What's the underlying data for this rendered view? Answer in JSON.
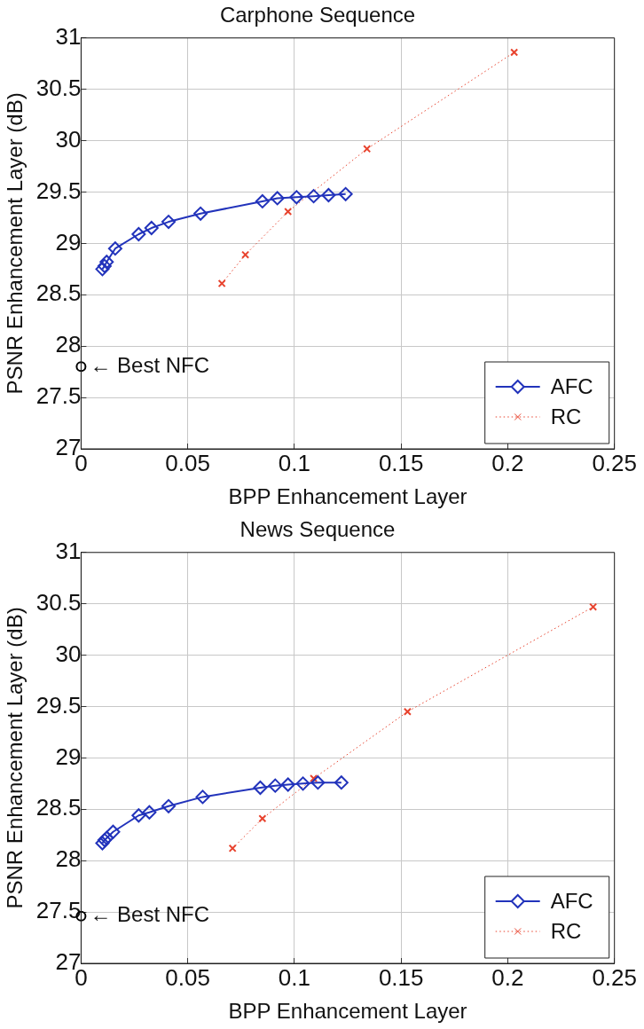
{
  "chart_data": [
    {
      "type": "line",
      "title": "Carphone Sequence",
      "xlabel": "BPP Enhancement Layer",
      "ylabel": "PSNR Enhancement Layer (dB)",
      "xlim": [
        0,
        0.25
      ],
      "xticks": [
        0,
        0.05,
        0.1,
        0.15,
        0.2,
        0.25
      ],
      "ylim": [
        27,
        31
      ],
      "yticks": [
        27,
        27.5,
        28,
        28.5,
        29,
        29.5,
        30,
        30.5,
        31
      ],
      "grid": true,
      "legend": "bottom right",
      "series": [
        {
          "name": "AFC",
          "type": "line",
          "color": "#2233bb",
          "marker": "diamond",
          "line_style": "solid",
          "x": [
            0.01,
            0.011,
            0.012,
            0.016,
            0.027,
            0.033,
            0.041,
            0.056,
            0.085,
            0.092,
            0.101,
            0.109,
            0.116,
            0.124
          ],
          "values": [
            28.75,
            28.78,
            28.82,
            28.95,
            29.09,
            29.15,
            29.21,
            29.29,
            29.41,
            29.44,
            29.45,
            29.46,
            29.47,
            29.48
          ]
        },
        {
          "name": "RC",
          "type": "line",
          "color": "#e8432e",
          "marker": "cross",
          "line_style": "dotted",
          "x": [
            0.066,
            0.077,
            0.097,
            0.134,
            0.203
          ],
          "values": [
            28.61,
            28.89,
            29.31,
            29.92,
            30.86
          ]
        },
        {
          "type": "scatter",
          "color": "#000000",
          "marker": "circle",
          "x": [
            0
          ],
          "values": [
            27.8
          ]
        }
      ],
      "annotations": [
        {
          "text": "← Best NFC",
          "x": 0,
          "y": 27.8
        }
      ]
    },
    {
      "type": "line",
      "title": "News Sequence",
      "xlabel": "BPP Enhancement Layer",
      "ylabel": "PSNR Enhancement Layer (dB)",
      "xlim": [
        0,
        0.25
      ],
      "xticks": [
        0,
        0.05,
        0.1,
        0.15,
        0.2,
        0.25
      ],
      "ylim": [
        27,
        31
      ],
      "yticks": [
        27,
        27.5,
        28,
        28.5,
        29,
        29.5,
        30,
        30.5,
        31
      ],
      "grid": true,
      "legend": "bottom right",
      "series": [
        {
          "name": "AFC",
          "type": "line",
          "color": "#2233bb",
          "marker": "diamond",
          "line_style": "solid",
          "x": [
            0.01,
            0.011,
            0.012,
            0.015,
            0.027,
            0.032,
            0.041,
            0.057,
            0.084,
            0.091,
            0.097,
            0.104,
            0.111,
            0.122
          ],
          "values": [
            28.17,
            28.2,
            28.22,
            28.28,
            28.44,
            28.47,
            28.53,
            28.62,
            28.71,
            28.73,
            28.74,
            28.75,
            28.76,
            28.76
          ]
        },
        {
          "name": "RC",
          "type": "line",
          "color": "#e8432e",
          "marker": "cross",
          "line_style": "dotted",
          "x": [
            0.071,
            0.085,
            0.109,
            0.153,
            0.24
          ],
          "values": [
            28.12,
            28.41,
            28.8,
            29.45,
            30.47
          ]
        },
        {
          "type": "scatter",
          "color": "#000000",
          "marker": "circle",
          "x": [
            0
          ],
          "values": [
            27.46
          ]
        }
      ],
      "annotations": [
        {
          "text": "← Best NFC",
          "x": 0,
          "y": 27.46
        }
      ]
    }
  ]
}
